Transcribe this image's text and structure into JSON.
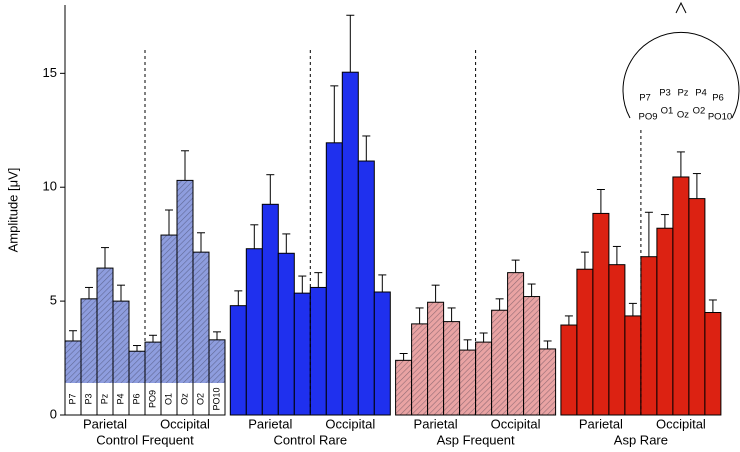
{
  "chart_data": {
    "type": "bar",
    "y_label": "Amplitude [μV]",
    "categories": [
      "P7",
      "P3",
      "Pz",
      "P4",
      "P6",
      "PO9",
      "O1",
      "Oz",
      "O2",
      "PO10"
    ],
    "regions": [
      "Parietal",
      "Occipital"
    ],
    "ylim": [
      0,
      18
    ],
    "yticks": [
      0,
      5,
      10,
      15
    ],
    "series": [
      {
        "name": "Control Frequent",
        "color": "#8e9dde",
        "hatched": true,
        "values": [
          3.25,
          5.1,
          6.45,
          5.0,
          2.8,
          3.2,
          7.9,
          10.3,
          7.15,
          3.3
        ],
        "errors": [
          0.45,
          0.5,
          0.9,
          0.7,
          0.25,
          0.3,
          1.1,
          1.3,
          0.85,
          0.35
        ]
      },
      {
        "name": "Control Rare",
        "color": "#1f30ee",
        "hatched": false,
        "values": [
          4.8,
          7.3,
          9.25,
          7.1,
          5.35,
          5.6,
          11.95,
          15.05,
          11.15,
          5.4
        ],
        "errors": [
          0.65,
          1.05,
          1.3,
          0.85,
          0.75,
          0.65,
          2.5,
          2.5,
          1.1,
          0.75
        ]
      },
      {
        "name": "Asp Frequent",
        "color": "#e9a3a3",
        "hatched": true,
        "values": [
          2.4,
          4.0,
          4.95,
          4.1,
          2.85,
          3.2,
          4.6,
          6.25,
          5.2,
          2.9
        ],
        "errors": [
          0.3,
          0.7,
          0.75,
          0.6,
          0.45,
          0.4,
          0.5,
          0.55,
          0.55,
          0.35
        ]
      },
      {
        "name": "Asp Rare",
        "color": "#dc2212",
        "hatched": false,
        "values": [
          3.95,
          6.4,
          8.85,
          6.6,
          4.35,
          6.95,
          8.2,
          10.45,
          9.5,
          4.5
        ],
        "errors": [
          0.4,
          0.75,
          1.05,
          0.8,
          0.55,
          1.95,
          0.6,
          1.1,
          1.1,
          0.55
        ]
      }
    ]
  }
}
